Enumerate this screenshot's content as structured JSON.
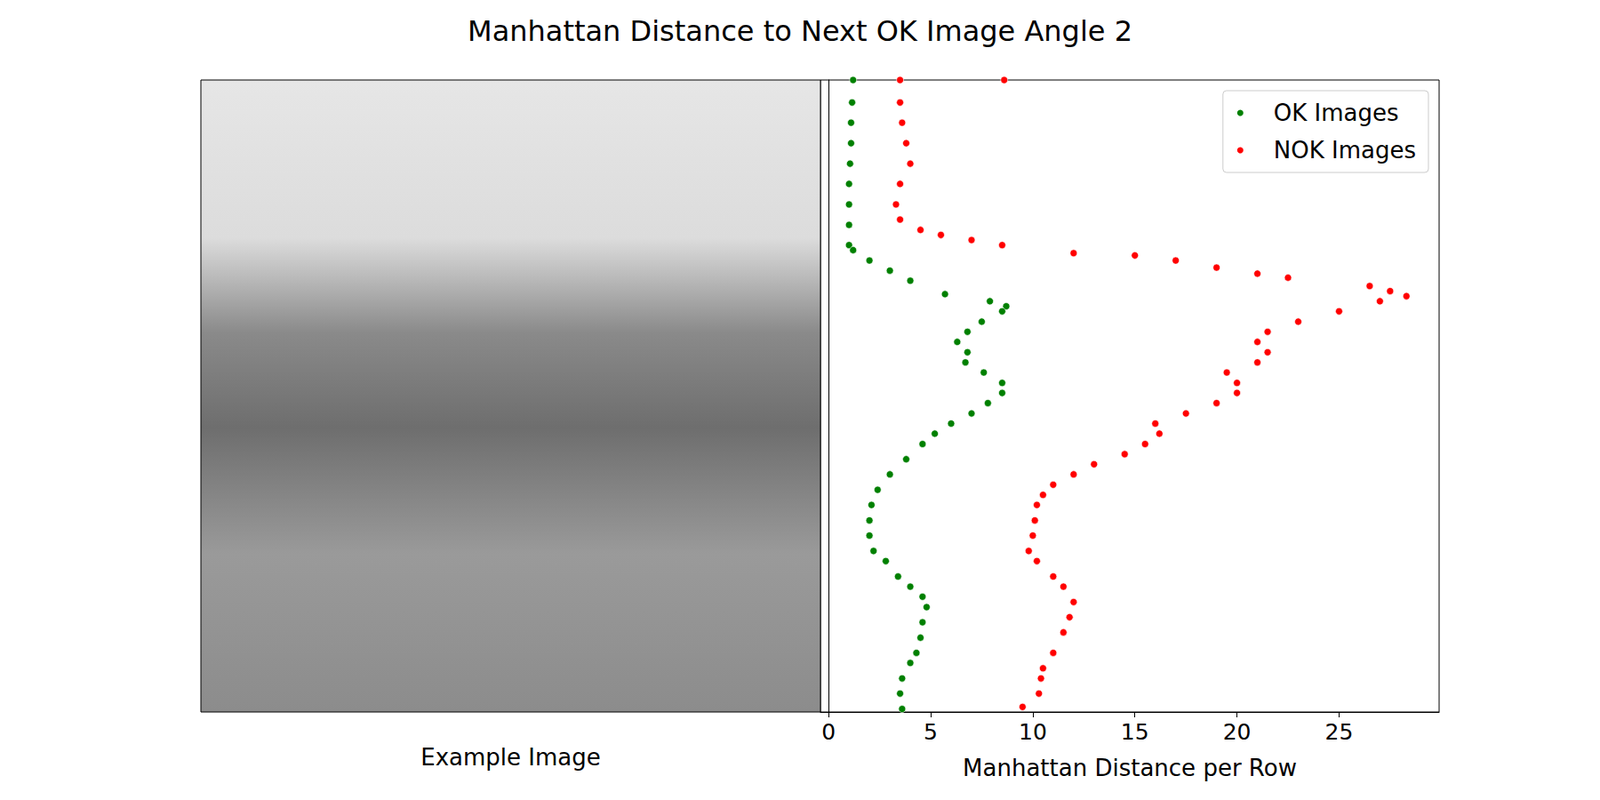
{
  "chart_data": {
    "type": "scatter",
    "title": "Manhattan Distance to Next OK Image Angle 2",
    "xlabel": "Manhattan Distance per Row",
    "image_label": "Example Image",
    "xlim": [
      -0.4,
      29.9
    ],
    "xticks": [
      0,
      5,
      10,
      15,
      20,
      25
    ],
    "ylim": [
      0,
      250
    ],
    "tick_labels": "x",
    "grid": false,
    "legend": "upper right",
    "marker": "circle",
    "series": [
      {
        "name": "OK Images",
        "color": "#008000",
        "x": [
          1.2,
          1.15,
          1.1,
          1.1,
          1.05,
          1.0,
          1.0,
          1.0,
          1.0,
          1.2,
          2.0,
          3.0,
          4.0,
          5.7,
          7.9,
          8.7,
          8.5,
          7.5,
          6.8,
          6.3,
          6.8,
          6.7,
          7.6,
          8.5,
          8.5,
          7.8,
          7.0,
          6.0,
          5.2,
          4.6,
          3.8,
          3.0,
          2.4,
          2.1,
          2.0,
          2.0,
          2.2,
          2.8,
          3.4,
          4.0,
          4.6,
          4.8,
          4.6,
          4.5,
          4.3,
          4.0,
          3.6,
          3.5,
          3.6
        ],
        "values": [
          250,
          241.1,
          233.1,
          225,
          216.9,
          208.9,
          200.8,
          192.7,
          184.7,
          182.7,
          178.6,
          174.6,
          170.6,
          165.3,
          162.5,
          160.5,
          158.5,
          154.4,
          150.4,
          146.4,
          142.3,
          138.3,
          134.3,
          130.2,
          126.2,
          122.2,
          118.1,
          114.1,
          110.1,
          106,
          100,
          94,
          87.9,
          81.9,
          75.8,
          69.8,
          63.7,
          59.7,
          53.6,
          49.6,
          45.6,
          41.5,
          35.5,
          29.4,
          23.4,
          19.4,
          13.3,
          7.3,
          1.2
        ]
      },
      {
        "name": "NOK Images",
        "color": "#ff0000",
        "x": [
          3.5,
          8.6,
          3.5,
          3.6,
          3.8,
          4.0,
          3.5,
          3.3,
          3.5,
          4.5,
          5.5,
          7.0,
          8.5,
          12.0,
          15.0,
          17.0,
          19.0,
          21.0,
          22.5,
          26.5,
          27.5,
          28.3,
          27.0,
          25.0,
          23.0,
          21.5,
          21.0,
          21.5,
          21.0,
          19.5,
          20.0,
          20.0,
          19.0,
          17.5,
          16.0,
          16.2,
          15.5,
          14.5,
          13.0,
          12.0,
          11.0,
          10.5,
          10.2,
          10.1,
          10.0,
          9.8,
          10.2,
          11.0,
          11.5,
          12.0,
          11.8,
          11.5,
          11.0,
          10.5,
          10.4,
          10.3,
          9.5
        ],
        "values": [
          250,
          250,
          241.1,
          233.1,
          225,
          216.9,
          208.9,
          200.8,
          194.8,
          190.7,
          188.7,
          186.7,
          184.7,
          181.5,
          180.6,
          178.6,
          175.8,
          173.4,
          171.8,
          168.5,
          166.5,
          164.5,
          162.5,
          158.5,
          154.4,
          150.4,
          146.4,
          142.3,
          138.3,
          134.3,
          130.2,
          126.2,
          122.2,
          118.1,
          114.1,
          110.1,
          106,
          102,
          98,
          94,
          89.9,
          85.9,
          81.9,
          75.8,
          69.8,
          63.7,
          59.7,
          53.6,
          49.6,
          43.5,
          37.5,
          31.5,
          23.4,
          17.3,
          13.3,
          7.3,
          2
        ]
      }
    ]
  }
}
